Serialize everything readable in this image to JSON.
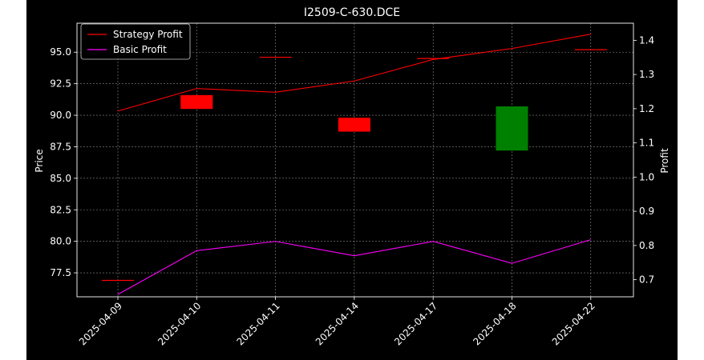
{
  "chart_data": {
    "type": "candlestick+line",
    "title": "I2509-C-630.DCE",
    "x": [
      "2025-04-09",
      "2025-04-10",
      "2025-04-11",
      "2025-04-14",
      "2025-04-17",
      "2025-04-18",
      "2025-04-22"
    ],
    "candles": [
      {
        "x": "2025-04-09",
        "open": 76.9,
        "close": 76.9
      },
      {
        "x": "2025-04-10",
        "open": 91.6,
        "close": 90.5
      },
      {
        "x": "2025-04-11",
        "open": 94.6,
        "close": 94.6
      },
      {
        "x": "2025-04-14",
        "open": 89.8,
        "close": 88.7
      },
      {
        "x": "2025-04-17",
        "open": 94.5,
        "close": 94.5
      },
      {
        "x": "2025-04-18",
        "open": 87.2,
        "close": 90.7
      },
      {
        "x": "2025-04-22",
        "open": 95.2,
        "close": 95.2
      }
    ],
    "series": [
      {
        "name": "Strategy Profit",
        "axis": "right",
        "color": "#ff0000",
        "values": [
          1.193,
          1.259,
          1.248,
          1.281,
          1.344,
          1.376,
          1.418
        ]
      },
      {
        "name": "Basic Profit",
        "axis": "right",
        "color": "#ff00ff",
        "values": [
          0.657,
          0.785,
          0.812,
          0.77,
          0.812,
          0.748,
          0.817
        ]
      }
    ],
    "ylabel": "Price",
    "y2label": "Profit",
    "ylim": [
      75.6,
      97.3
    ],
    "y2lim": [
      0.65,
      1.45
    ],
    "yticks": [
      "77.5",
      "80.0",
      "82.5",
      "85.0",
      "87.5",
      "90.0",
      "92.5",
      "95.0"
    ],
    "y2ticks": [
      "0.7",
      "0.8",
      "0.9",
      "1.0",
      "1.1",
      "1.2",
      "1.3",
      "1.4"
    ],
    "grid": true,
    "legend": "top-left",
    "colors": {
      "up": "#008000",
      "down": "#ff0000",
      "background": "#000000",
      "foreground": "#ffffff"
    }
  }
}
